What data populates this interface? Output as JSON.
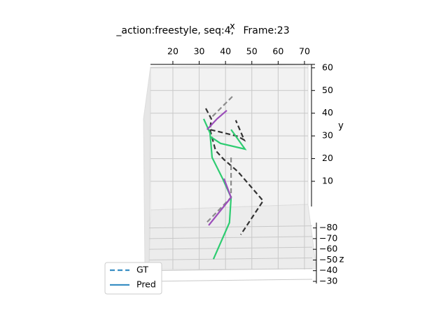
{
  "chart_data": {
    "type": "line3d",
    "title": "_action:freestyle, seq:4,   Frame:23",
    "xlabel": "x",
    "ylabel": "y",
    "zlabel": "z",
    "xlim": [
      11.5,
      74
    ],
    "xticks": [
      20,
      30,
      40,
      50,
      60,
      70
    ],
    "ylim": [
      -1.1,
      61.5
    ],
    "yticks": [
      10,
      20,
      30,
      40,
      50,
      60
    ],
    "zlim": [
      -85,
      -28
    ],
    "zticks": [
      {
        "value": -80,
        "label": "−80"
      },
      {
        "value": -70,
        "label": "−70"
      },
      {
        "value": -60,
        "label": "−60"
      },
      {
        "value": -50,
        "label": "−50"
      },
      {
        "value": -40,
        "label": "−40"
      },
      {
        "value": -30,
        "label": "−30"
      }
    ],
    "grid": true,
    "legend": "lower left",
    "series": [
      {
        "name": "GT",
        "color": "#3a8fc4",
        "dashed": true,
        "parts": [
          {
            "color": "#333333",
            "x": [
              32.5,
              34.6,
              34.1,
              39.4,
              44.7,
              47.1,
              43.9,
              null,
              34.1,
              36.2,
              39.4,
              44.7,
              54.3,
              45.8
            ],
            "y": [
              42.1,
              37.5,
              32.8,
              31.3,
              29.8,
              28.2,
              36.9,
              null,
              32.8,
              23.6,
              19.6,
              14.3,
              1.4,
              -13.5
            ]
          },
          {
            "color": "#8c8c8c",
            "x": [
              42.6,
              34.1,
              null,
              42.1,
              42.1,
              32.8
            ],
            "y": [
              47.3,
              37.5,
              null,
              20.5,
              2.9,
              -8.2
            ]
          }
        ]
      },
      {
        "name": "Pred",
        "color": "#3a8fc4",
        "dashed": false,
        "parts": [
          {
            "color": "#2ecc71",
            "x": [
              31.7,
              34.1,
              34.9,
              38.9,
              42.1,
              41.5,
              35.4,
              null,
              34.1,
              38.1,
              47.4,
              42.1
            ],
            "y": [
              37.5,
              31.3,
              20.5,
              11.2,
              2.9,
              -8.2,
              -24.3,
              null,
              29.8,
              26.7,
              24.2,
              32.8
            ]
          },
          {
            "color": "#9b4dba",
            "x": [
              33.0,
              36.8,
              40.5,
              null,
              39.4,
              42.1,
              33.6
            ],
            "y": [
              32.8,
              37.5,
              41.2,
              null,
              11.2,
              2.9,
              -9.4
            ]
          }
        ]
      }
    ]
  }
}
